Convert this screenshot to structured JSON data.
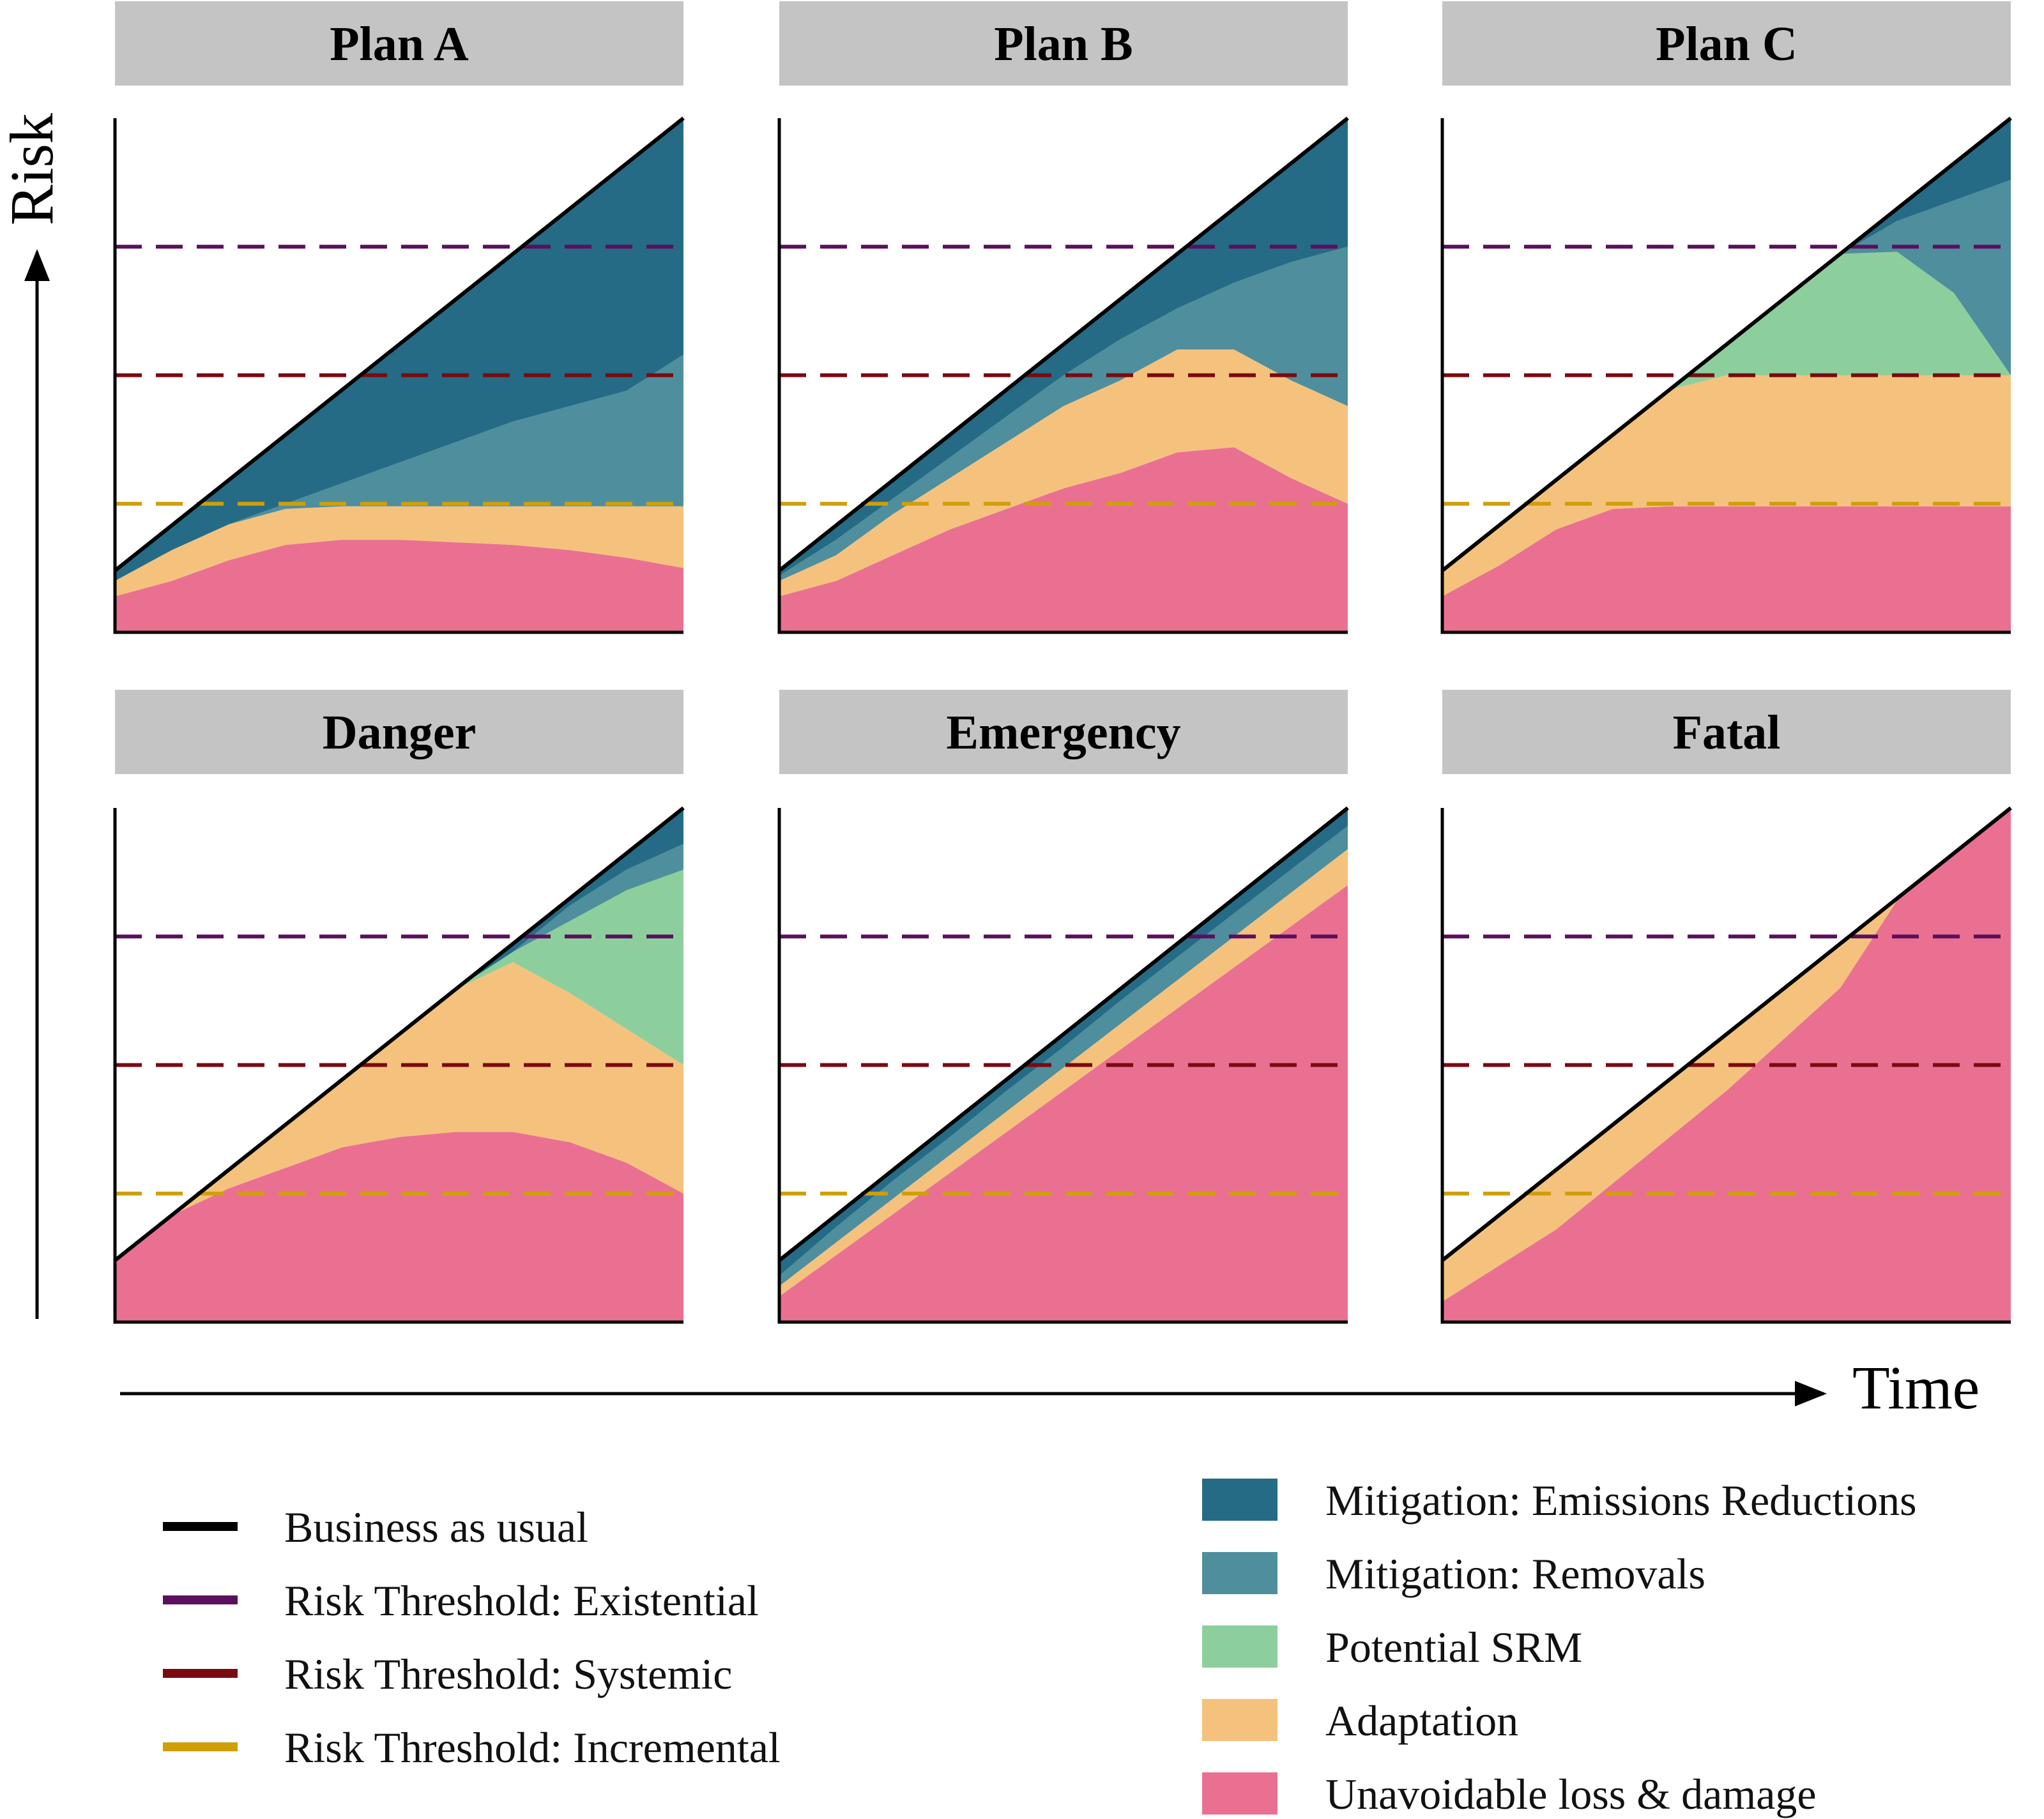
{
  "chart_data": {
    "type": "area",
    "colors": {
      "bau": "#000000",
      "existential": "#5b0f5e",
      "systemic": "#7a0a10",
      "incremental": "#cf9f0a",
      "emissions": "#256b85",
      "removals": "#4f8e9c",
      "srm": "#8dcf9c",
      "adaptation": "#f5c27d",
      "loss": "#ea7092",
      "title_bg": "#c4c4c4"
    },
    "axes": {
      "y_label": "Risk",
      "x_label": "Time",
      "x_range": [
        0,
        1
      ],
      "y_range": [
        0,
        1
      ]
    },
    "thresholds": [
      {
        "key": "existential",
        "label": "Risk Threshold: Existential",
        "value": 0.75
      },
      {
        "key": "systemic",
        "label": "Risk Threshold: Systemic",
        "value": 0.5
      },
      {
        "key": "incremental",
        "label": "Risk Threshold: Incremental",
        "value": 0.25
      }
    ],
    "bau": {
      "label": "Business as usual",
      "x": [
        0,
        1
      ],
      "y": [
        0.12,
        1.0
      ]
    },
    "layer_order": [
      "loss",
      "adaptation",
      "srm",
      "removals",
      "emissions"
    ],
    "legend_lines": [
      {
        "key": "bau",
        "label": "Business as usual"
      },
      {
        "key": "existential",
        "label": "Risk Threshold: Existential"
      },
      {
        "key": "systemic",
        "label": "Risk Threshold: Systemic"
      },
      {
        "key": "incremental",
        "label": "Risk Threshold: Incremental"
      }
    ],
    "legend_areas": [
      {
        "key": "emissions",
        "label": "Mitigation: Emissions Reductions"
      },
      {
        "key": "removals",
        "label": "Mitigation: Removals"
      },
      {
        "key": "srm",
        "label": "Potential SRM"
      },
      {
        "key": "adaptation",
        "label": "Adaptation"
      },
      {
        "key": "loss",
        "label": "Unavoidable loss & damage"
      }
    ],
    "panels": [
      {
        "title": "Plan A",
        "x": [
          0,
          0.1,
          0.2,
          0.3,
          0.4,
          0.5,
          0.6,
          0.7,
          0.8,
          0.9,
          1.0
        ],
        "loss": [
          0.07,
          0.1,
          0.14,
          0.17,
          0.18,
          0.18,
          0.175,
          0.17,
          0.16,
          0.145,
          0.125
        ],
        "adaptation": [
          0.1,
          0.16,
          0.21,
          0.24,
          0.245,
          0.245,
          0.245,
          0.245,
          0.245,
          0.245,
          0.245
        ],
        "srm": [
          0.1,
          0.16,
          0.21,
          0.24,
          0.245,
          0.245,
          0.245,
          0.245,
          0.245,
          0.245,
          0.245
        ],
        "removals": [
          0.1,
          0.16,
          0.21,
          0.25,
          0.29,
          0.33,
          0.37,
          0.41,
          0.44,
          0.47,
          0.54
        ],
        "emissions": [
          0.12,
          0.208,
          0.296,
          0.384,
          0.472,
          0.56,
          0.648,
          0.736,
          0.824,
          0.912,
          1.0
        ]
      },
      {
        "title": "Plan B",
        "x": [
          0,
          0.1,
          0.2,
          0.3,
          0.4,
          0.5,
          0.6,
          0.7,
          0.8,
          0.9,
          1.0
        ],
        "loss": [
          0.07,
          0.1,
          0.15,
          0.2,
          0.24,
          0.28,
          0.31,
          0.35,
          0.36,
          0.3,
          0.25
        ],
        "adaptation": [
          0.1,
          0.15,
          0.23,
          0.3,
          0.37,
          0.44,
          0.49,
          0.55,
          0.55,
          0.49,
          0.44
        ],
        "srm": [
          0.1,
          0.15,
          0.23,
          0.3,
          0.37,
          0.44,
          0.49,
          0.55,
          0.55,
          0.49,
          0.44
        ],
        "removals": [
          0.11,
          0.18,
          0.26,
          0.34,
          0.42,
          0.5,
          0.57,
          0.63,
          0.68,
          0.72,
          0.75
        ],
        "emissions": [
          0.12,
          0.208,
          0.296,
          0.384,
          0.472,
          0.56,
          0.648,
          0.736,
          0.824,
          0.912,
          1.0
        ]
      },
      {
        "title": "Plan C",
        "x": [
          0,
          0.1,
          0.2,
          0.3,
          0.4,
          0.5,
          0.6,
          0.7,
          0.8,
          0.9,
          1.0
        ],
        "loss": [
          0.07,
          0.13,
          0.2,
          0.24,
          0.245,
          0.245,
          0.245,
          0.245,
          0.245,
          0.245,
          0.245
        ],
        "adaptation": [
          0.12,
          0.208,
          0.296,
          0.384,
          0.472,
          0.5,
          0.5,
          0.5,
          0.5,
          0.5,
          0.5
        ],
        "srm": [
          0.12,
          0.208,
          0.296,
          0.384,
          0.472,
          0.56,
          0.648,
          0.736,
          0.74,
          0.66,
          0.5
        ],
        "removals": [
          0.12,
          0.208,
          0.296,
          0.384,
          0.472,
          0.56,
          0.648,
          0.736,
          0.8,
          0.84,
          0.88
        ],
        "emissions": [
          0.12,
          0.208,
          0.296,
          0.384,
          0.472,
          0.56,
          0.648,
          0.736,
          0.824,
          0.912,
          1.0
        ]
      },
      {
        "title": "Danger",
        "x": [
          0,
          0.1,
          0.2,
          0.3,
          0.4,
          0.5,
          0.6,
          0.7,
          0.8,
          0.9,
          1.0
        ],
        "loss": [
          0.12,
          0.208,
          0.26,
          0.3,
          0.34,
          0.36,
          0.37,
          0.37,
          0.35,
          0.31,
          0.25
        ],
        "adaptation": [
          0.12,
          0.208,
          0.296,
          0.384,
          0.472,
          0.56,
          0.648,
          0.7,
          0.64,
          0.57,
          0.5
        ],
        "srm": [
          0.12,
          0.208,
          0.296,
          0.384,
          0.472,
          0.56,
          0.648,
          0.72,
          0.78,
          0.84,
          0.88
        ],
        "removals": [
          0.12,
          0.208,
          0.296,
          0.384,
          0.472,
          0.56,
          0.648,
          0.72,
          0.81,
          0.88,
          0.93
        ],
        "emissions": [
          0.12,
          0.208,
          0.296,
          0.384,
          0.472,
          0.56,
          0.648,
          0.736,
          0.824,
          0.912,
          1.0
        ]
      },
      {
        "title": "Emergency",
        "x": [
          0,
          0.1,
          0.2,
          0.3,
          0.4,
          0.5,
          0.6,
          0.7,
          0.8,
          0.9,
          1.0
        ],
        "loss": [
          0.05,
          0.13,
          0.21,
          0.29,
          0.37,
          0.45,
          0.53,
          0.61,
          0.69,
          0.77,
          0.85
        ],
        "adaptation": [
          0.07,
          0.155,
          0.24,
          0.325,
          0.41,
          0.495,
          0.58,
          0.665,
          0.75,
          0.835,
          0.92
        ],
        "srm": [
          0.07,
          0.155,
          0.24,
          0.325,
          0.41,
          0.495,
          0.58,
          0.665,
          0.75,
          0.835,
          0.92
        ],
        "removals": [
          0.09,
          0.185,
          0.275,
          0.36,
          0.45,
          0.535,
          0.625,
          0.71,
          0.795,
          0.88,
          0.965
        ],
        "emissions": [
          0.12,
          0.208,
          0.296,
          0.384,
          0.472,
          0.56,
          0.648,
          0.736,
          0.824,
          0.912,
          1.0
        ]
      },
      {
        "title": "Fatal",
        "x": [
          0,
          0.1,
          0.2,
          0.3,
          0.4,
          0.5,
          0.6,
          0.7,
          0.8,
          0.9,
          1.0
        ],
        "loss": [
          0.04,
          0.11,
          0.18,
          0.27,
          0.36,
          0.45,
          0.55,
          0.65,
          0.82,
          0.912,
          1.0
        ],
        "adaptation": [
          0.12,
          0.208,
          0.296,
          0.384,
          0.472,
          0.56,
          0.648,
          0.736,
          0.824,
          0.912,
          1.0
        ],
        "srm": [
          0.12,
          0.208,
          0.296,
          0.384,
          0.472,
          0.56,
          0.648,
          0.736,
          0.824,
          0.912,
          1.0
        ],
        "removals": [
          0.12,
          0.208,
          0.296,
          0.384,
          0.472,
          0.56,
          0.648,
          0.736,
          0.824,
          0.912,
          1.0
        ],
        "emissions": [
          0.12,
          0.208,
          0.296,
          0.384,
          0.472,
          0.56,
          0.648,
          0.736,
          0.824,
          0.912,
          1.0
        ]
      }
    ]
  }
}
